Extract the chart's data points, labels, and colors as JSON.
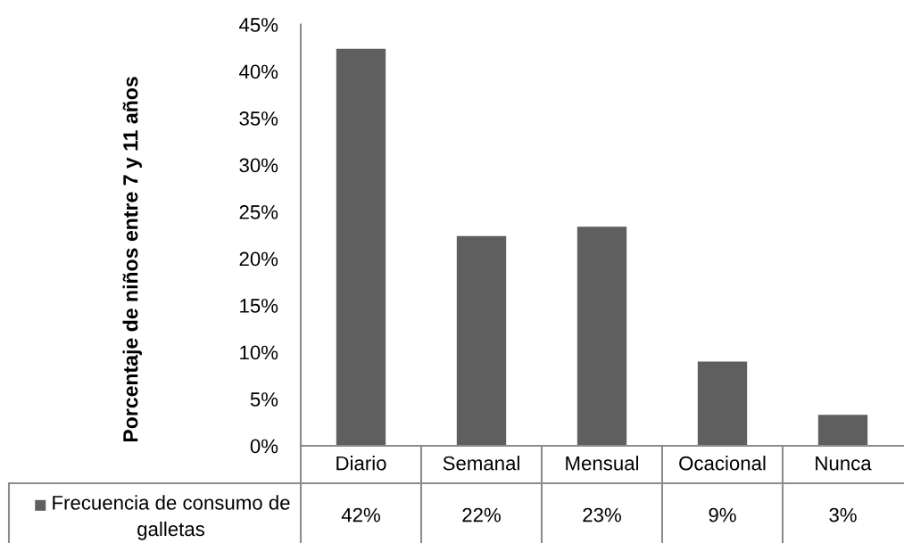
{
  "chart_data": {
    "type": "bar",
    "ylabel": "Porcentaje de niños entre 7 y 11 años",
    "categories": [
      "Diario",
      "Semanal",
      "Mensual",
      "Ocacional",
      "Nunca"
    ],
    "series": [
      {
        "name": "Frecuencia de consumo de galletas",
        "color": "#5f5f5f",
        "values": [
          42.4,
          22.4,
          23.4,
          9.0,
          3.3
        ],
        "value_labels": [
          "42%",
          "22%",
          "23%",
          "9%",
          "3%"
        ]
      }
    ],
    "ylim": [
      0,
      45
    ],
    "yticks": [
      {
        "value": 0,
        "label": "0%"
      },
      {
        "value": 5,
        "label": "5%"
      },
      {
        "value": 10,
        "label": "10%"
      },
      {
        "value": 15,
        "label": "15%"
      },
      {
        "value": 20,
        "label": "20%"
      },
      {
        "value": 25,
        "label": "25%"
      },
      {
        "value": 30,
        "label": "30%"
      },
      {
        "value": 35,
        "label": "35%"
      },
      {
        "value": 40,
        "label": "40%"
      },
      {
        "value": 45,
        "label": "45%"
      }
    ],
    "legend": "bottom"
  }
}
